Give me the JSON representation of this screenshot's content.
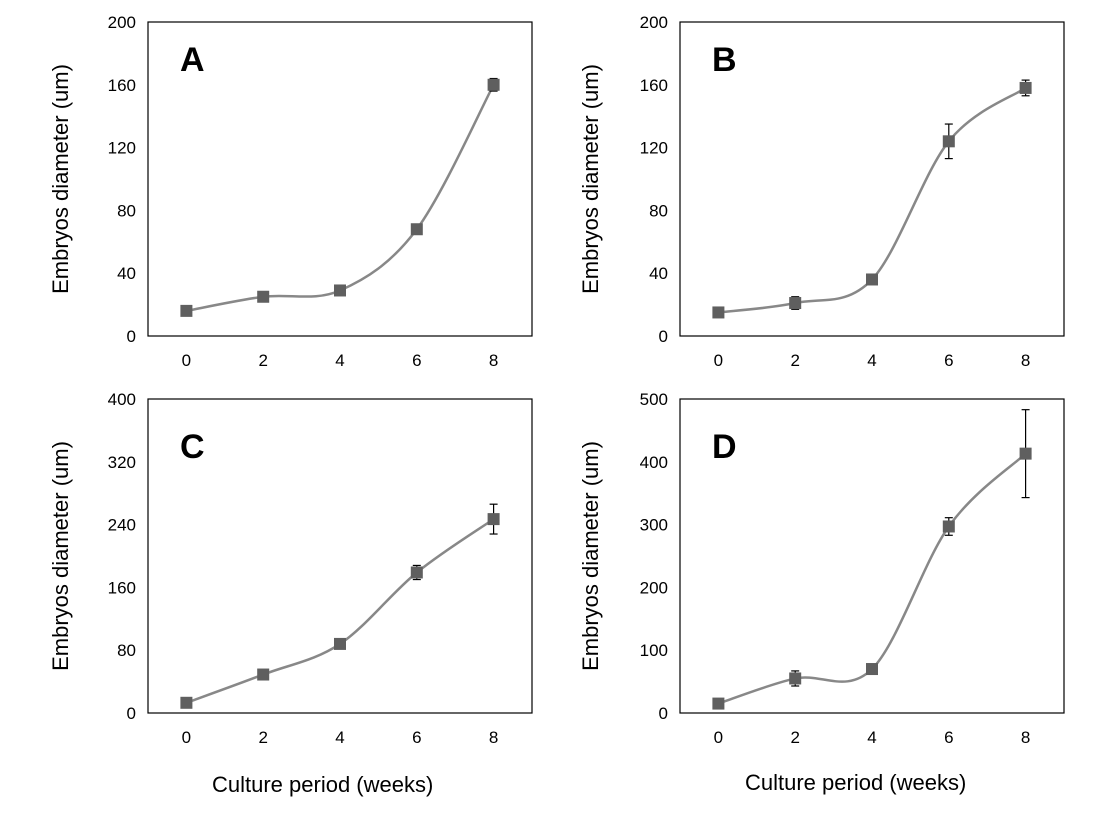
{
  "chart_data": [
    {
      "type": "line",
      "panel": "A",
      "xlabel": "",
      "ylabel": "Embryos diameter (um)",
      "x": [
        0,
        2,
        4,
        6,
        8
      ],
      "xticks": [
        "0",
        "2",
        "4",
        "6",
        "8"
      ],
      "yticks": [
        "0",
        "40",
        "80",
        "120",
        "160",
        "200"
      ],
      "ylim": [
        0,
        200
      ],
      "xlim": [
        -1,
        9
      ],
      "series": [
        {
          "values": [
            16,
            25,
            29,
            68,
            160
          ],
          "errors": [
            0,
            0,
            2,
            0,
            4
          ]
        }
      ],
      "color": "#888888"
    },
    {
      "type": "line",
      "panel": "B",
      "xlabel": "",
      "ylabel": "Embryos diameter (um)",
      "x": [
        0,
        2,
        4,
        6,
        8
      ],
      "xticks": [
        "0",
        "2",
        "4",
        "6",
        "8"
      ],
      "yticks": [
        "0",
        "40",
        "80",
        "120",
        "160",
        "200"
      ],
      "ylim": [
        0,
        200
      ],
      "xlim": [
        -1,
        9
      ],
      "series": [
        {
          "values": [
            15,
            21,
            36,
            124,
            158
          ],
          "errors": [
            0,
            4,
            0,
            11,
            5
          ]
        }
      ],
      "color": "#888888"
    },
    {
      "type": "line",
      "panel": "C",
      "xlabel": "Culture period (weeks)",
      "ylabel": "Embryos diameter (um)",
      "x": [
        0,
        2,
        4,
        6,
        8
      ],
      "xticks": [
        "0",
        "2",
        "4",
        "6",
        "8"
      ],
      "yticks": [
        "0",
        "80",
        "160",
        "240",
        "320",
        "400"
      ],
      "ylim": [
        0,
        400
      ],
      "xlim": [
        -1,
        9
      ],
      "series": [
        {
          "values": [
            13,
            49,
            88,
            179,
            247
          ],
          "errors": [
            0,
            0,
            0,
            9,
            19
          ]
        }
      ],
      "color": "#888888"
    },
    {
      "type": "line",
      "panel": "D",
      "xlabel": "Culture period (weeks)",
      "ylabel": "Embryos diameter (um)",
      "x": [
        0,
        2,
        4,
        6,
        8
      ],
      "xticks": [
        "0",
        "2",
        "4",
        "6",
        "8"
      ],
      "yticks": [
        "0",
        "100",
        "200",
        "300",
        "400",
        "500"
      ],
      "ylim": [
        0,
        500
      ],
      "xlim": [
        -1,
        9
      ],
      "series": [
        {
          "values": [
            15,
            55,
            70,
            297,
            413
          ],
          "errors": [
            0,
            12,
            0,
            14,
            70
          ]
        }
      ],
      "color": "#888888"
    }
  ]
}
